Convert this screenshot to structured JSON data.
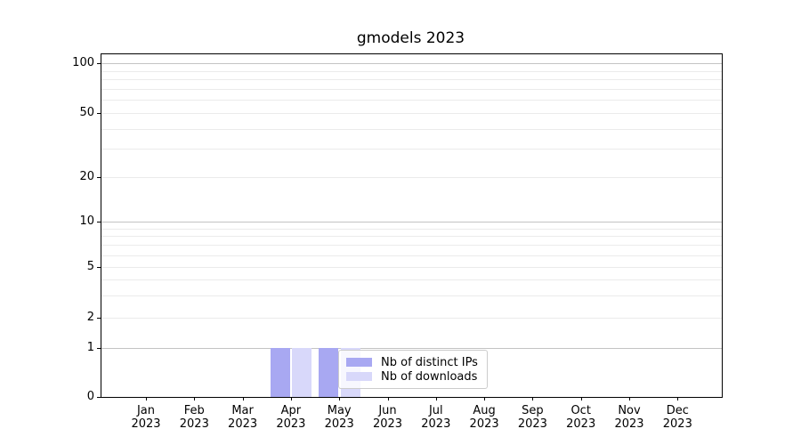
{
  "chart_data": {
    "type": "bar",
    "title": "gmodels 2023",
    "categories": [
      "Jan 2023",
      "Feb 2023",
      "Mar 2023",
      "Apr 2023",
      "May 2023",
      "Jun 2023",
      "Jul 2023",
      "Aug 2023",
      "Sep 2023",
      "Oct 2023",
      "Nov 2023",
      "Dec 2023"
    ],
    "x_tick_months": [
      "Jan",
      "Feb",
      "Mar",
      "Apr",
      "May",
      "Jun",
      "Jul",
      "Aug",
      "Sep",
      "Oct",
      "Nov",
      "Dec"
    ],
    "x_tick_year": "2023",
    "series": [
      {
        "name": "Nb of distinct IPs",
        "color": "#a8a8f2",
        "values": [
          0,
          0,
          0,
          1,
          1,
          0,
          0,
          0,
          0,
          0,
          0,
          0
        ]
      },
      {
        "name": "Nb of downloads",
        "color": "#d8d8fa",
        "values": [
          0,
          0,
          0,
          1,
          1,
          0,
          0,
          0,
          0,
          0,
          0,
          0
        ]
      }
    ],
    "y_axis": {
      "scale": "symlog",
      "labeled_ticks": [
        0,
        1,
        2,
        5,
        10,
        20,
        50,
        100
      ],
      "decade_gridlines": [
        1,
        10,
        100
      ],
      "minor_gridlines": [
        2,
        3,
        4,
        5,
        6,
        7,
        8,
        9,
        20,
        30,
        40,
        50,
        60,
        70,
        80,
        90
      ],
      "ylim": [
        0,
        115
      ]
    },
    "legend": {
      "entries": [
        "Nb of distinct IPs",
        "Nb of downloads"
      ],
      "position": "lower center"
    },
    "grid": true
  }
}
